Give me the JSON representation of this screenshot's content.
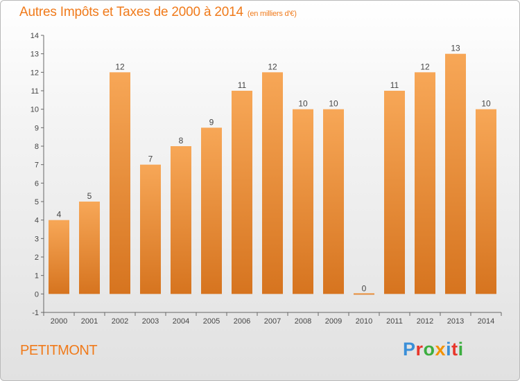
{
  "header": {
    "title": "Autres Impôts et Taxes de 2000 à 2014",
    "unit": "(en milliers d'€)"
  },
  "footer": {
    "commune": "PETITMONT",
    "logo_letters": [
      "P",
      "r",
      "o",
      "x",
      "i",
      "t",
      "i"
    ],
    "logo_colors": [
      "#3a8fd8",
      "#e8372b",
      "#3cae3f",
      "#f39200",
      "#3a8fd8",
      "#e8372b",
      "#3cae3f"
    ]
  },
  "chart_data": {
    "type": "bar",
    "categories": [
      "2000",
      "2001",
      "2002",
      "2003",
      "2004",
      "2005",
      "2006",
      "2007",
      "2008",
      "2009",
      "2010",
      "2011",
      "2012",
      "2013",
      "2014"
    ],
    "values": [
      4,
      5,
      12,
      7,
      8,
      9,
      11,
      12,
      10,
      10,
      0,
      11,
      12,
      13,
      10
    ],
    "data_labels": [
      "4",
      "5",
      "12",
      "7",
      "8",
      "9",
      "11",
      "12",
      "10",
      "10",
      "0",
      "11",
      "12",
      "13",
      "10"
    ],
    "ylim": [
      -1,
      14
    ],
    "yticks": [
      "-1",
      "0",
      "1",
      "2",
      "3",
      "4",
      "5",
      "6",
      "7",
      "8",
      "9",
      "10",
      "11",
      "12",
      "13",
      "14"
    ],
    "grid": false,
    "colors": {
      "bar_light": "#f7a757",
      "bar_dark": "#d6741f",
      "text": "#444444",
      "axis": "#666666"
    }
  }
}
